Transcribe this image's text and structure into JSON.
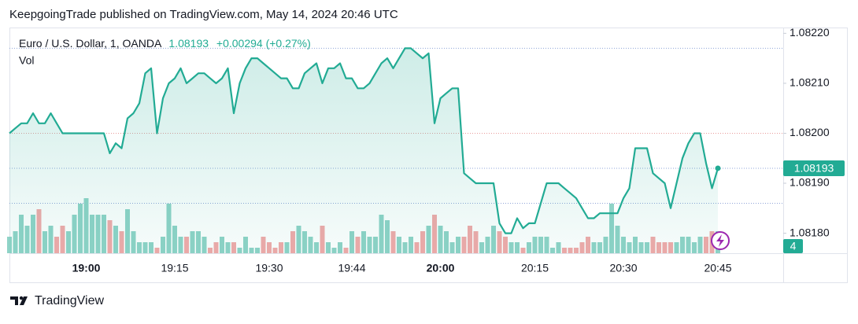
{
  "header": {
    "publisher": "KeepgoingTrade published on TradingView.com, May 14, 2024 20:46 UTC"
  },
  "footer": {
    "brand": "TradingView"
  },
  "chart_data": {
    "type": "line",
    "symbol": "Euro / U.S. Dollar, 1, OANDA",
    "change": "+0.00294 (+0.27%)",
    "categories": [
      null,
      null,
      null,
      null,
      null,
      null,
      null,
      null,
      null,
      null,
      null,
      null,
      null,
      "19:00",
      null,
      null,
      null,
      null,
      null,
      null,
      null,
      null,
      null,
      null,
      null,
      null,
      null,
      null,
      "19:15",
      null,
      null,
      null,
      null,
      null,
      null,
      null,
      null,
      null,
      null,
      null,
      null,
      null,
      null,
      null,
      "19:30",
      null,
      null,
      null,
      null,
      null,
      null,
      null,
      null,
      null,
      null,
      null,
      null,
      null,
      "19:44",
      null,
      null,
      null,
      null,
      null,
      null,
      null,
      null,
      null,
      null,
      null,
      null,
      null,
      null,
      "20:00",
      null,
      null,
      null,
      null,
      null,
      null,
      null,
      null,
      null,
      null,
      null,
      null,
      null,
      null,
      null,
      "20:15",
      null,
      null,
      null,
      null,
      null,
      null,
      null,
      null,
      null,
      null,
      null,
      null,
      null,
      null,
      "20:30",
      null,
      null,
      null,
      null,
      null,
      null,
      null,
      null,
      null,
      null,
      null,
      null,
      null,
      null,
      null,
      "20:45"
    ],
    "series": [
      {
        "name": "Euro / U.S. Dollar",
        "color": "#22ab94",
        "values": [
          1.082,
          1.08201,
          1.08202,
          1.08202,
          1.08204,
          1.08202,
          1.08202,
          1.08204,
          1.08202,
          1.082,
          1.082,
          1.082,
          1.082,
          1.082,
          1.082,
          1.082,
          1.082,
          1.08196,
          1.08198,
          1.08197,
          1.08203,
          1.08204,
          1.08206,
          1.08212,
          1.08213,
          1.082,
          1.08207,
          1.0821,
          1.08211,
          1.08213,
          1.0821,
          1.08211,
          1.08212,
          1.08212,
          1.08211,
          1.0821,
          1.08211,
          1.08213,
          1.08204,
          1.0821,
          1.08213,
          1.08215,
          1.08215,
          1.08214,
          1.08213,
          1.08212,
          1.08211,
          1.08211,
          1.08209,
          1.08209,
          1.08212,
          1.08213,
          1.08214,
          1.0821,
          1.08213,
          1.08213,
          1.08214,
          1.08211,
          1.08211,
          1.08209,
          1.08209,
          1.0821,
          1.08212,
          1.08214,
          1.08215,
          1.08213,
          1.08215,
          1.08217,
          1.08217,
          1.08216,
          1.08215,
          1.08216,
          1.08202,
          1.08207,
          1.08208,
          1.08209,
          1.08209,
          1.08192,
          1.08191,
          1.0819,
          1.0819,
          1.0819,
          1.0819,
          1.08182,
          1.0818,
          1.0818,
          1.08183,
          1.08181,
          1.08182,
          1.08182,
          1.08186,
          1.0819,
          1.0819,
          1.0819,
          1.08189,
          1.08188,
          1.08187,
          1.08185,
          1.08183,
          1.08183,
          1.08184,
          1.08184,
          1.08184,
          1.08184,
          1.08187,
          1.08189,
          1.08197,
          1.08197,
          1.08197,
          1.08192,
          1.08191,
          1.0819,
          1.08185,
          1.0819,
          1.08195,
          1.08198,
          1.082,
          1.082,
          1.08194,
          1.08189,
          1.08193
        ]
      },
      {
        "name": "Vol",
        "up_color": "#8fd3c7",
        "down_color": "#f2a9a9",
        "values": [
          3,
          4,
          7,
          5,
          7,
          8,
          4,
          5,
          3,
          5,
          4,
          7,
          9,
          10,
          7,
          7,
          7,
          6,
          5,
          4,
          8,
          4,
          2,
          2,
          2,
          1,
          3,
          9,
          5,
          3,
          3,
          4,
          4,
          3,
          1,
          2,
          3,
          2,
          2,
          1,
          3,
          1,
          1,
          3,
          2,
          1,
          2,
          2,
          4,
          5,
          4,
          3,
          2,
          5,
          2,
          1,
          2,
          1,
          4,
          3,
          4,
          3,
          3,
          7,
          6,
          4,
          3,
          2,
          3,
          2,
          4,
          5,
          7,
          5,
          4,
          2,
          3,
          3,
          5,
          4,
          2,
          3,
          5,
          4,
          3,
          2,
          2,
          1,
          2,
          3,
          3,
          3,
          1,
          2,
          1,
          1,
          1,
          2,
          3,
          2,
          2,
          3,
          9,
          5,
          3,
          2,
          3,
          2,
          2,
          3,
          2,
          2,
          2,
          2,
          3,
          3,
          2,
          3,
          3,
          4,
          4
        ]
      }
    ],
    "reference_lines": [
      {
        "value": 1.08217,
        "color": "#8fa4d8"
      },
      {
        "value": 1.082,
        "color": "#e89a9a"
      },
      {
        "value": 1.08193,
        "color": "#8fa4d8"
      },
      {
        "value": 1.08186,
        "color": "#8fa4d8"
      }
    ],
    "ylim": [
      1.08176,
      1.08221
    ],
    "yticks": [
      {
        "value": 1.0818,
        "label": "1.08180"
      },
      {
        "value": 1.0819,
        "label": "1.08190"
      },
      {
        "value": 1.082,
        "label": "1.08200"
      },
      {
        "value": 1.0821,
        "label": "1.08210"
      },
      {
        "value": 1.0822,
        "label": "1.08220"
      }
    ],
    "grid": true
  }
}
